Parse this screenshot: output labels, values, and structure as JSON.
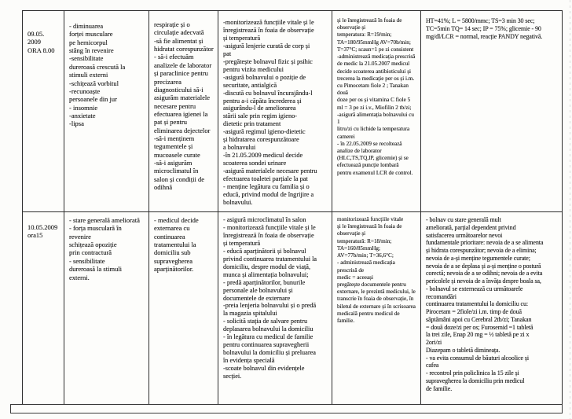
{
  "page": {
    "kind": "scanned nursing care plan table (Romanian)",
    "ink_color": "#242424",
    "paper_color": "#fcfcfa",
    "border_color": "#2e2e2e"
  },
  "care_plan_table": {
    "rows": [
      {
        "cells": [
          "09.05.\n2009\nORA 8.00",
          "- diminuarea\nforței musculare\npe hemicorpul\nstâng în revenire\n-sensibilitate\ndureroasă crescută la\nstimuli externi\n-schițează vorbitul\n-recunoaște\npersoanele din jur\n- insomnie\n-anxietate\n-lipsa",
          "respirație și o\ncirculație adecvată\n-să fie alimentat și\nhidratat corespunzător\n- să-i efectuăm\nanalizele de laborator\nși paraclinice pentru\nprecizarea\ndiagnosticului să-i\nasigurăm materialele\nnecesare pentru\nefectuarea igienei la\npat și pentru\neliminarea dejectelor\n-să-i menținem\ntegumentele și\nmucoasele curate\n-să-i asigurăm\nmicroclimatul în\nsalon și condiții de\nodihnă",
          "-monitorizează funcțiile vitale și le\nînregistrează în foaia de observație\nși temperatură\n-asigură lenjerie curată de corp și\npat\n-pregătește bolnavul fizic și psihic\npentru vizita medicului\n-asigură bolnavului o poziție de\nsecuritate, antialgică\n-discută cu bolnavul încurajându-l\npentru a-i căpăta încrederea și\nasigurându-l de ameliorarea\nstării sale prin regim igieno-\ndietetic prin tratament\n-asigură regimul igieno-dietetic\nși hidratarea corespunzătoare\na bolnavului\n-în 21.05.2009 medicul decide\nscoaterea sondei urinare\n-asigură materialele necesare pentru\nefectuarea toaletei parțiale la pat\n- menține legătura cu familia și o\neducă, privind modul de îngrijire a\nbolnavului.",
          "și le înregistrează în foaia de\nobservație și\ntemperatura: R=19/min;\nTA=180/95mmHg AV=70b/min;\nT=37°C; scaun=1 pe zi consistent\n-administrează medicația prescrisă\nde medic la 21.05.2007 medicul\ndecide scoaterea antibioticului și\ntrecerea la medicație per os și i.m.\ncu Pimocetam fiole 2 ; Tanakan două\ndoze per os și vitamina C fiole 5\nml = 3 pe zi i.v., Miofilin 2 tb/zi;\n-asigură alimentația bolnavului cu 1\nlitru/zi cu lichide la temperatura\ncamerei\n- în 22.05.2009 se recoltează\nanalize de laborator\n(HLC,TS,TQ,IP, glicemie) și se\nefectuează puncție lombară\npentru examenul LCR de control.",
          "HT=41%; L = 5800/mmc; TS=3 min 30 sec;\nTC=5min TQ= 14 sec; IP = 75%; glicemie - 90\nmg/dl/LCR = normal, reacție PANDY negativă."
        ]
      },
      {
        "cells": [
          "10.05.2009\nora15",
          "- stare generală ameliorată\n- forța musculară în\nrevenire\nschițează opoziție\nprin contractură\n- sensibilitate\ndureroasă la stimuli\nexterni.",
          "- medicul decide\nexternarea cu\ncontinuarea\ntratamentului la\ndomiciliu sub\nsupravegherea\naparținătorilor.",
          "- asigură microclimatul în salon\n- monitorizează funcțiile vitale și le\nînregistrează în foaia de observație\nși temperatură\n- educă aparținătorii și bolnavul\nprivind continuarea tratamentului la\ndomiciliu, despre modul de viață,\nmunca și alimentația bolnavului;\n- predă aparținătorilor, bunurile\npersonale ale bolnavului și\ndocumentele de externare\n-preia lenjeria bolnavului și o predă\nla magazia spitalului\n- solicită stația de salvare pentru\ndeplasarea bolnavului la domiciliu\n- în legătura cu medicul de familie\npentru continuarea supravegherii\nbolnavului la domiciliu și preluarea\nîn evidența specială\n-scoate bolnavul din evidențele\nsecției.",
          "monitorizează funcțiile vitale\nși le înregistrează în foaia de\nobservație și\ntemperatură: R=18/min;\nTA=160/85mmHg;\nAV=77b/min; T=36,6°C;\n- administrează medicația\nprescrisă de\nmedic = aceeași\npregătește documentele pentru\nexternare, le prezintă medicului, le\ntranscrie în foaia de observație, în\nbiletul de externare și în scrisoarea\nmedicală pentru medicul de\nfamilie.",
          "- bolnav cu stare generală mult\nameliorată, parțial dependent privind\nsatisfacerea următoarelor nevoi\nfundamentale prioritare: nevoia de a se alimenta\nși hidrata corespunzător; nevoia de a elimina;\nnevoia de a-și menține tegumentele curate;\nnevoia de a se deplasa și a-și menține o postură\ncorectă; nevoia de a se odihni; nevoia de a evita\npericolele și nevoia de a învăța despre boala sa,\n- bolnavul se externează cu următoarele\nrecomandări\ncontinuarea tratamentului la domiciliu cu:\nPirocetam = 2fiole/zi i.m. timp de două\nsăptămâni apoi cu Cerebral 2tb/zi; Tanakan\n= două doze/zi per os; Furosemid =1 tabletă\nla trei zile, Enap 20 mg = ½ tabletă pe zi x\n2ori/zi\nDiazepam o tabletă dimineața.\n- va evita consumul de băuturi alcoolice și\ncafea\n- recontrol prin policlinica la 15 zile și\nsupravegherea la domiciliu prin medicul\nde familie."
        ]
      }
    ]
  }
}
